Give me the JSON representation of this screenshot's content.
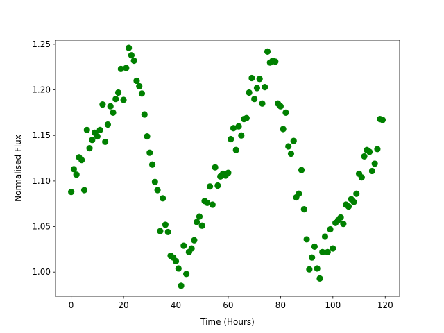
{
  "chart_data": {
    "type": "scatter",
    "title": "",
    "xlabel": "Time (Hours)",
    "ylabel": "Normalised Flux",
    "xlim": [
      -6,
      125.5
    ],
    "ylim": [
      0.9735,
      1.2545
    ],
    "xticks": [
      0,
      20,
      40,
      60,
      80,
      100,
      120
    ],
    "yticks": [
      1.0,
      1.05,
      1.1,
      1.15,
      1.2,
      1.25
    ],
    "ytick_decimals": 2,
    "grid": false,
    "legend": "none",
    "marker_color": "#008000",
    "series": [
      {
        "x": [
          0,
          1,
          2,
          3,
          4,
          5,
          6,
          7,
          8,
          9,
          10,
          11,
          12,
          13,
          14,
          15,
          16,
          17,
          18,
          19,
          20,
          21,
          22,
          23,
          24,
          25,
          26,
          27,
          28,
          29,
          30,
          31,
          32,
          33,
          34,
          35,
          36,
          37,
          38,
          39,
          40,
          41,
          42,
          43,
          44,
          45,
          46,
          47,
          48,
          49,
          50,
          51,
          52,
          53,
          54,
          55,
          56,
          57,
          58,
          59,
          60,
          61,
          62,
          63,
          64,
          65,
          66,
          67,
          68,
          69,
          70,
          71,
          72,
          73,
          74,
          75,
          76,
          77,
          78,
          79,
          80,
          81,
          82,
          83,
          84,
          85,
          86,
          87,
          88,
          89,
          90,
          91,
          92,
          93,
          94,
          95,
          96,
          97,
          98,
          99,
          100,
          101,
          102,
          103,
          104,
          105,
          106,
          107,
          108,
          109,
          110,
          111,
          112,
          113,
          114,
          115,
          116,
          117,
          118,
          119
        ],
        "y": [
          1.088,
          1.113,
          1.107,
          1.126,
          1.123,
          1.09,
          1.156,
          1.136,
          1.145,
          1.153,
          1.149,
          1.156,
          1.184,
          1.143,
          1.162,
          1.182,
          1.175,
          1.19,
          1.197,
          1.223,
          1.189,
          1.224,
          1.246,
          1.238,
          1.232,
          1.21,
          1.204,
          1.196,
          1.173,
          1.149,
          1.131,
          1.118,
          1.099,
          1.09,
          1.045,
          1.081,
          1.052,
          1.044,
          1.018,
          1.016,
          1.012,
          1.004,
          0.985,
          1.029,
          0.998,
          1.022,
          1.026,
          1.035,
          1.055,
          1.061,
          1.051,
          1.078,
          1.076,
          1.094,
          1.074,
          1.115,
          1.095,
          1.105,
          1.108,
          1.106,
          1.109,
          1.146,
          1.158,
          1.134,
          1.16,
          1.15,
          1.168,
          1.169,
          1.197,
          1.213,
          1.19,
          1.202,
          1.212,
          1.185,
          1.203,
          1.242,
          1.23,
          1.232,
          1.231,
          1.185,
          1.182,
          1.157,
          1.175,
          1.138,
          1.13,
          1.144,
          1.082,
          1.086,
          1.112,
          1.069,
          1.036,
          1.003,
          1.016,
          1.028,
          1.004,
          0.993,
          1.022,
          1.039,
          1.022,
          1.047,
          1.026,
          1.054,
          1.057,
          1.06,
          1.053,
          1.074,
          1.072,
          1.08,
          1.077,
          1.086,
          1.108,
          1.104,
          1.127,
          1.134,
          1.132,
          1.111,
          1.119,
          1.135,
          1.168,
          1.167
        ]
      }
    ]
  }
}
